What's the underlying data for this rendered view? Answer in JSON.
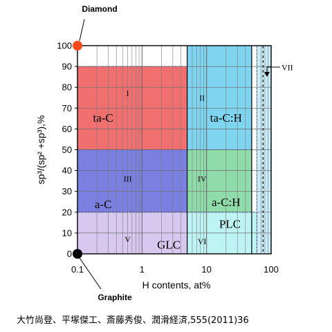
{
  "chart_data": {
    "type": "ternary-region-map",
    "xlabel": "H contents, at%",
    "ylabel": "sp³/(sp² +sp³),%",
    "x_scale": "log",
    "xlim": [
      0.1,
      100
    ],
    "ylim": [
      0,
      100
    ],
    "x_ticks": [
      "0.1",
      "1",
      "10",
      "100"
    ],
    "y_ticks": [
      "0",
      "10",
      "20",
      "30",
      "40",
      "50",
      "60",
      "70",
      "80",
      "90",
      "100"
    ],
    "grid": true,
    "regions": [
      {
        "roman": "I",
        "name": "ta-C",
        "x": [
          0.1,
          5
        ],
        "y": [
          50,
          90
        ],
        "color": "#f07070"
      },
      {
        "roman": "II",
        "name": "ta-C:H",
        "x": [
          5,
          50
        ],
        "y": [
          50,
          100
        ],
        "color": "#7fd4f0"
      },
      {
        "roman": "III",
        "name": "a-C",
        "x": [
          0.1,
          5
        ],
        "y": [
          20,
          50
        ],
        "color": "#7b7fe0"
      },
      {
        "roman": "IV",
        "name": "a-C:H",
        "x": [
          5,
          50
        ],
        "y": [
          20,
          50
        ],
        "color": "#8fdcaa"
      },
      {
        "roman": "V",
        "name": "GLC",
        "x": [
          0.1,
          5
        ],
        "y": [
          0,
          20
        ],
        "color": "#d8c8f0"
      },
      {
        "roman": "VI",
        "name": "PLC",
        "x": [
          5,
          60
        ],
        "y": [
          0,
          20
        ],
        "color": "#bff4f4"
      },
      {
        "roman": "VII",
        "name": "",
        "x": [
          60,
          100
        ],
        "y": [
          0,
          100
        ],
        "color": "#c8ecf8"
      }
    ],
    "points": [
      {
        "name": "Diamond",
        "x": 0.1,
        "y": 100,
        "color": "#ff4a1c"
      },
      {
        "name": "Graphite",
        "x": 0.1,
        "y": 0,
        "color": "#000000"
      }
    ]
  },
  "citation": "大竹尚登、平塚傑工、斎藤秀俊、潤滑経済,555(2011)36"
}
